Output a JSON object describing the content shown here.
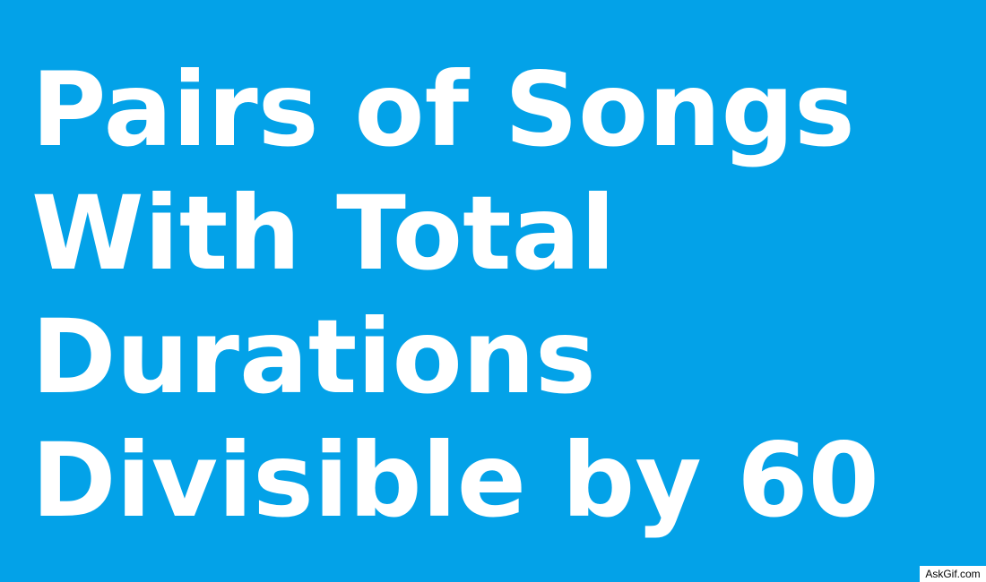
{
  "image": {
    "background_color": "#03a2e8",
    "text_color": "#ffffff",
    "title_lines": [
      "Pairs of Songs",
      "With Total",
      "Durations",
      "Divisible by 60"
    ],
    "watermark": "AskGif.com"
  }
}
